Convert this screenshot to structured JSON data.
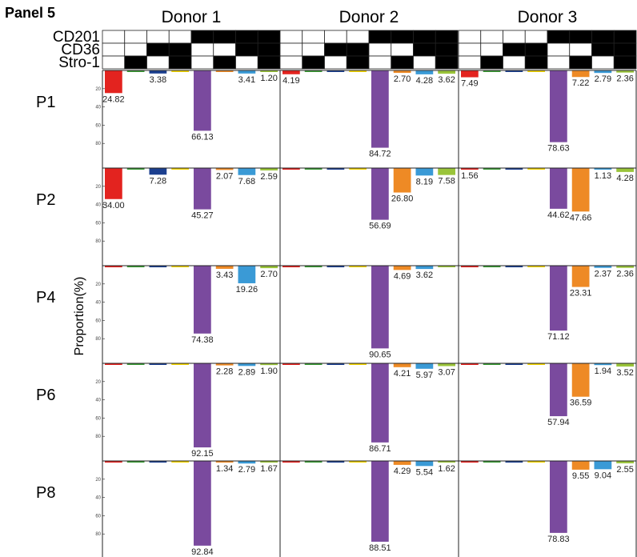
{
  "panel_title": "Panel 5",
  "y_axis_label": "Proportion(%)",
  "colors": {
    "bar_colors": [
      "#e3231f",
      "#3a9b35",
      "#1b3f8f",
      "#f4d600",
      "#7a4a9e",
      "#ee8a25",
      "#3a9ad6",
      "#9ac43a"
    ],
    "marker_on": "#000000",
    "marker_off": "#ffffff",
    "grid": "#222222"
  },
  "chart_data": {
    "type": "bar",
    "donors": [
      "Donor 1",
      "Donor  2",
      "Donor 3"
    ],
    "passages": [
      "P1",
      "P2",
      "P4",
      "P6",
      "P8"
    ],
    "markers": [
      {
        "name": "CD201",
        "pattern": [
          0,
          0,
          0,
          0,
          1,
          1,
          1,
          1
        ]
      },
      {
        "name": "CD36",
        "pattern": [
          0,
          0,
          1,
          1,
          0,
          0,
          1,
          1
        ]
      },
      {
        "name": "Stro-1",
        "pattern": [
          0,
          1,
          0,
          1,
          0,
          1,
          0,
          1
        ]
      }
    ],
    "ylim": [
      0,
      100
    ],
    "yticks": [
      20,
      40,
      60,
      80
    ],
    "values": [
      [
        [
          24.82,
          0.3,
          3.38,
          0.3,
          66.13,
          0.5,
          3.41,
          1.2
        ],
        [
          4.19,
          0.3,
          0.3,
          0.3,
          84.72,
          2.7,
          4.28,
          3.62
        ],
        [
          7.49,
          0.3,
          0.3,
          0.3,
          78.63,
          7.22,
          2.79,
          2.36
        ]
      ],
      [
        [
          34.0,
          0.5,
          7.28,
          0.3,
          45.27,
          2.07,
          7.68,
          2.59
        ],
        [
          0.5,
          0.3,
          0.3,
          0.3,
          56.69,
          26.8,
          8.19,
          7.58
        ],
        [
          1.56,
          0.3,
          0.3,
          0.3,
          44.62,
          47.66,
          1.13,
          4.28
        ]
      ],
      [
        [
          0.5,
          0.5,
          0.5,
          0.3,
          74.38,
          3.43,
          19.26,
          2.7
        ],
        [
          0.5,
          0.3,
          0.3,
          0.3,
          90.65,
          4.69,
          3.62,
          1.0
        ],
        [
          0.5,
          0.3,
          0.3,
          0.3,
          71.12,
          23.31,
          2.37,
          2.36
        ]
      ],
      [
        [
          0.8,
          0.5,
          0.5,
          0.3,
          92.15,
          2.28,
          2.89,
          1.9
        ],
        [
          0.5,
          0.3,
          0.3,
          0.3,
          86.71,
          4.21,
          5.97,
          3.07
        ],
        [
          0.5,
          0.3,
          0.3,
          0.3,
          57.94,
          36.59,
          1.94,
          3.52
        ]
      ],
      [
        [
          1.5,
          0.5,
          0.5,
          0.3,
          92.84,
          1.34,
          2.79,
          1.67
        ],
        [
          0.5,
          0.3,
          0.3,
          0.3,
          88.51,
          4.29,
          5.54,
          1.62
        ],
        [
          0.5,
          0.3,
          0.3,
          0.3,
          78.83,
          9.55,
          9.04,
          2.55
        ]
      ]
    ],
    "labels": [
      [
        [
          "24.82",
          "",
          "3.38",
          "",
          "66.13",
          "",
          "3.41",
          "1.20"
        ],
        [
          "4.19",
          "",
          "",
          "",
          "84.72",
          "2.70",
          "4.28",
          "3.62"
        ],
        [
          "7.49",
          "",
          "",
          "",
          "78.63",
          "7.22",
          "2.79",
          "2.36"
        ]
      ],
      [
        [
          "34.00",
          "",
          "7.28",
          "",
          "45.27",
          "2.07",
          "7.68",
          "2.59"
        ],
        [
          "",
          "",
          "",
          "",
          "56.69",
          "26.80",
          "8.19",
          "7.58"
        ],
        [
          "1.56",
          "",
          "",
          "",
          "44.62",
          "47.66",
          "1.13",
          "4.28"
        ]
      ],
      [
        [
          "",
          "",
          "",
          "",
          "74.38",
          "3.43",
          "19.26",
          "2.70"
        ],
        [
          "",
          "",
          "",
          "",
          "90.65",
          "4.69",
          "3.62",
          ""
        ],
        [
          "",
          "",
          "",
          "",
          "71.12",
          "23.31",
          "2.37",
          "2.36"
        ]
      ],
      [
        [
          "",
          "",
          "",
          "",
          "92.15",
          "2.28",
          "2.89",
          "1.90"
        ],
        [
          "",
          "",
          "",
          "",
          "86.71",
          "4.21",
          "5.97",
          "3.07"
        ],
        [
          "",
          "",
          "",
          "",
          "57.94",
          "36.59",
          "1.94",
          "3.52"
        ]
      ],
      [
        [
          "",
          "",
          "",
          "",
          "92.84",
          "1.34",
          "2.79",
          "1.67"
        ],
        [
          "",
          "",
          "",
          "",
          "88.51",
          "4.29",
          "5.54",
          "1.62"
        ],
        [
          "",
          "",
          "",
          "",
          "78.83",
          "9.55",
          "9.04",
          "2.55"
        ]
      ]
    ]
  }
}
